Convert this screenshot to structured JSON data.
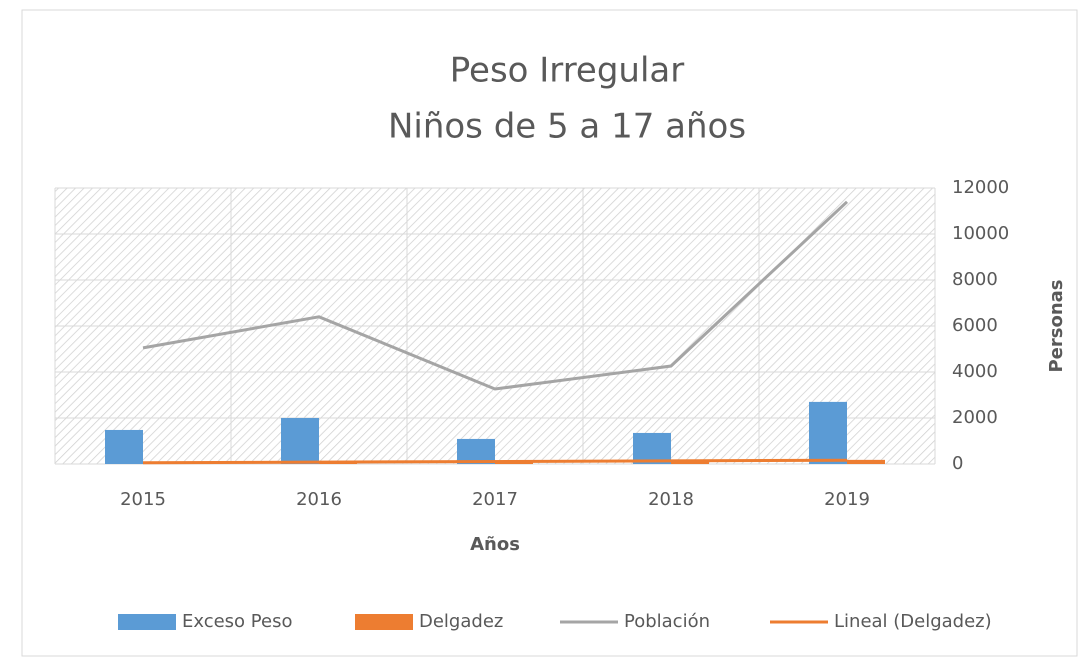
{
  "chart_data": {
    "type": "bar-line",
    "title": [
      "Peso Irregular",
      "Niños de 5 a 17 años"
    ],
    "x_label": "Años",
    "y_label": "Personas",
    "categories": [
      "2015",
      "2016",
      "2017",
      "2018",
      "2019"
    ],
    "series": [
      {
        "name": "Exceso Peso",
        "type": "bar",
        "color": "#5b9bd5",
        "values": [
          1480,
          2000,
          1090,
          1350,
          2700
        ]
      },
      {
        "name": "Delgadez",
        "type": "bar",
        "color": "#ed7d31",
        "values": [
          60,
          80,
          100,
          120,
          180
        ]
      },
      {
        "name": "Población",
        "type": "line",
        "color": "#a5a5a5",
        "values": [
          5050,
          6400,
          3260,
          4260,
          11400
        ]
      }
    ],
    "trendline": {
      "name": "Lineal (Delgadez)",
      "series": 1,
      "color": "#ed7d31"
    },
    "ylim": [
      0,
      12000
    ],
    "yticks": [
      0,
      2000,
      4000,
      6000,
      8000,
      10000,
      12000
    ],
    "grid": true,
    "legend": "bottom"
  }
}
